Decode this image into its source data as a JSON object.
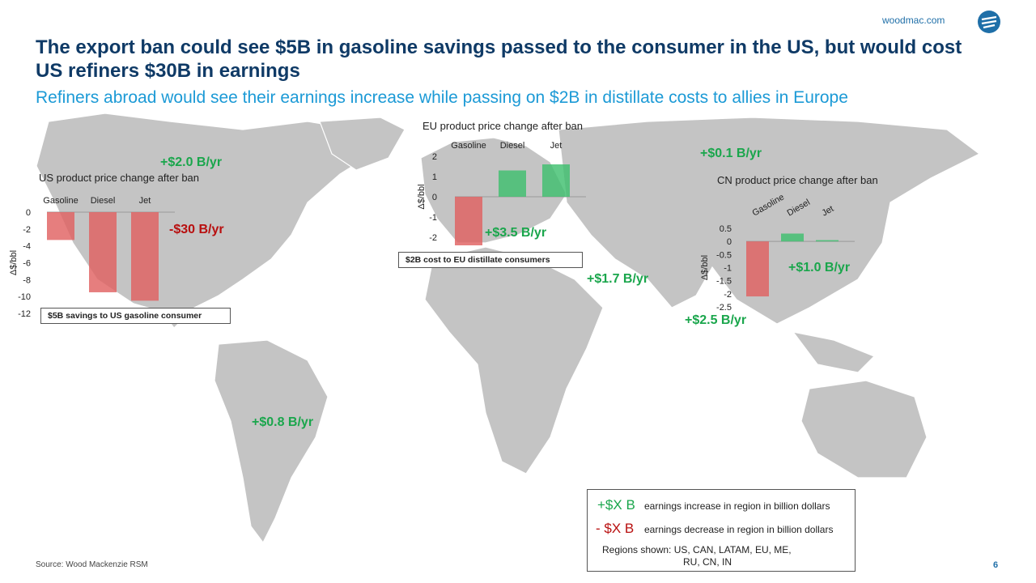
{
  "header": {
    "brand_url": "woodmac.com",
    "title": "The export ban could see $5B in gasoline savings passed to the consumer in the US, but would cost US refiners $30B in earnings",
    "subtitle": "Refiners abroad would see their earnings increase while passing on $2B in distillate costs to allies in Europe"
  },
  "map_labels": {
    "can": "+$2.0 B/yr",
    "us": "-$30 B/yr",
    "latam": "+$0.8 B/yr",
    "eu": "+$3.5 B/yr",
    "me": "+$1.7 B/yr",
    "ru": "+$0.1 B/yr",
    "cn": "+$1.0 B/yr",
    "in": "+$2.5 B/yr"
  },
  "notes": {
    "us": "$5B savings to US gasoline consumer",
    "eu": "$2B cost to EU distillate consumers"
  },
  "legend": {
    "increase_key": "+$X B",
    "increase_text": "earnings increase in region in billion dollars",
    "decrease_key": "- $X B",
    "decrease_text": "earnings decrease in region in billion dollars",
    "regions_line1": "Regions shown: US, CAN, LATAM, EU, ME,",
    "regions_line2": "RU, CN, IN"
  },
  "footer": {
    "source": "Source: Wood Mackenzie RSM",
    "page": "6"
  },
  "colors": {
    "increase": "#1aa64c",
    "decrease": "#b80f0f",
    "neg_bar": "#e06262",
    "pos_bar": "#3fbf6f",
    "land": "#c4c4c4"
  },
  "chart_data": [
    {
      "type": "bar",
      "title": "US product price change after ban",
      "categories": [
        "Gasoline",
        "Diesel",
        "Jet"
      ],
      "values": [
        -3.3,
        -9.5,
        -10.5
      ],
      "ylabel": "Δ$/bbl",
      "ylim": [
        -12,
        0
      ],
      "yticks": [
        "0",
        "-2",
        "-4",
        "-6",
        "-8",
        "-10",
        "-12"
      ]
    },
    {
      "type": "bar",
      "title": "EU product price change after ban",
      "categories": [
        "Gasoline",
        "Diesel",
        "Jet"
      ],
      "values": [
        -2.4,
        1.3,
        1.6
      ],
      "ylabel": "Δ$/bbl",
      "ylim": [
        -2,
        2
      ],
      "yticks": [
        "2",
        "1",
        "0",
        "-1",
        "-2"
      ]
    },
    {
      "type": "bar",
      "title": "CN product price change after ban",
      "categories": [
        "Gasoline",
        "Diesel",
        "Jet"
      ],
      "values": [
        -2.1,
        0.3,
        0.05
      ],
      "ylabel": "Δ$/bbl",
      "ylim": [
        -2.5,
        0.5
      ],
      "yticks": [
        "0.5",
        "0",
        "-0.5",
        "-1",
        "-1.5",
        "-2",
        "-2.5"
      ]
    }
  ]
}
